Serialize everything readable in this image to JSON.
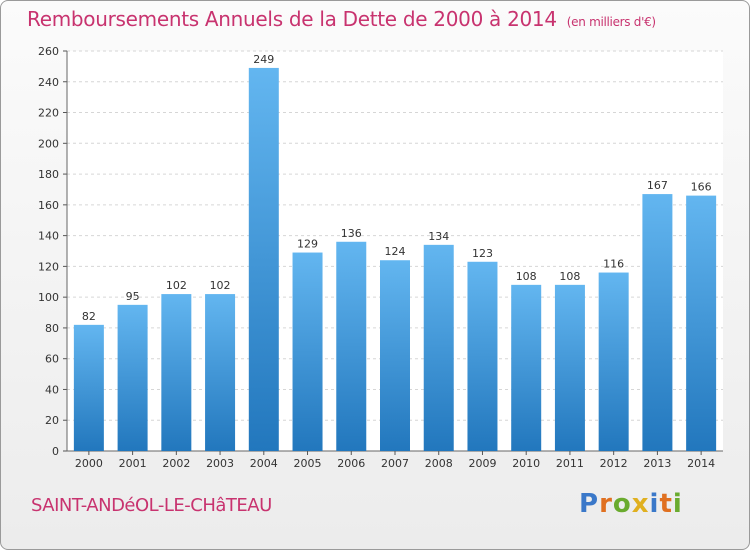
{
  "header": {
    "title": "Remboursements Annuels de la Dette de 2000 à 2014",
    "unit": "(en milliers d'€)"
  },
  "footer": {
    "commune": "SAINT-ANDéOL-LE-CHâTEAU",
    "logo": "Proxiti"
  },
  "colors": {
    "title": "#c8336f",
    "bar_top": "#63b6f0",
    "bar_bottom": "#2277bd",
    "logo_letters": [
      "#3a78c9",
      "#e07020",
      "#6aab2e",
      "#e0b020",
      "#3a78c9",
      "#e07020",
      "#6aab2e"
    ]
  },
  "chart_data": {
    "type": "bar",
    "categories": [
      "2000",
      "2001",
      "2002",
      "2003",
      "2004",
      "2005",
      "2006",
      "2007",
      "2008",
      "2009",
      "2010",
      "2011",
      "2012",
      "2013",
      "2014"
    ],
    "values": [
      82,
      95,
      102,
      102,
      249,
      129,
      136,
      124,
      134,
      123,
      108,
      108,
      116,
      167,
      166
    ],
    "ylim": [
      0,
      260
    ],
    "yticks": [
      0,
      20,
      40,
      60,
      80,
      100,
      120,
      140,
      160,
      180,
      200,
      220,
      240,
      260
    ],
    "grid": true,
    "data_labels": true
  }
}
